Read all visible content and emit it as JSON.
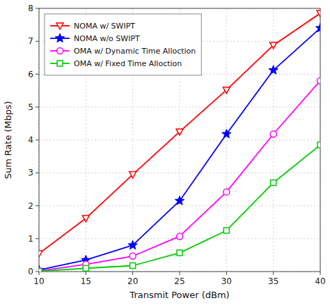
{
  "chart_data": {
    "type": "line",
    "x": [
      10,
      15,
      20,
      25,
      30,
      35,
      40
    ],
    "series": [
      {
        "name": "NOMA w/  SWIPT",
        "color": "#ff0000",
        "marker": "triangle-down",
        "values": [
          0.55,
          1.62,
          2.95,
          4.25,
          5.52,
          6.88,
          7.85
        ]
      },
      {
        "name": "NOMA w/o SWIPT",
        "color": "#0000ff",
        "marker": "star",
        "values": [
          0.05,
          0.35,
          0.8,
          2.15,
          4.18,
          6.12,
          7.4
        ]
      },
      {
        "name": "OMA w/ Dynamic Time Alloction",
        "color": "#ff00ff",
        "marker": "circle",
        "values": [
          0.02,
          0.22,
          0.47,
          1.07,
          2.42,
          4.18,
          5.8
        ]
      },
      {
        "name": "OMA w/ Fixed Time Alloction",
        "color": "#00cc00",
        "marker": "square",
        "values": [
          0.01,
          0.1,
          0.18,
          0.57,
          1.25,
          2.7,
          3.85
        ]
      }
    ],
    "xlabel": "Transmit Power (dBm)",
    "ylabel": "Sum Rate (Mbps)",
    "xlim": [
      10,
      40
    ],
    "ylim": [
      0,
      8
    ],
    "xticks": [
      10,
      15,
      20,
      25,
      30,
      35,
      40
    ],
    "yticks": [
      0,
      1,
      2,
      3,
      4,
      5,
      6,
      7,
      8
    ],
    "grid": true,
    "legend": "upper left"
  }
}
